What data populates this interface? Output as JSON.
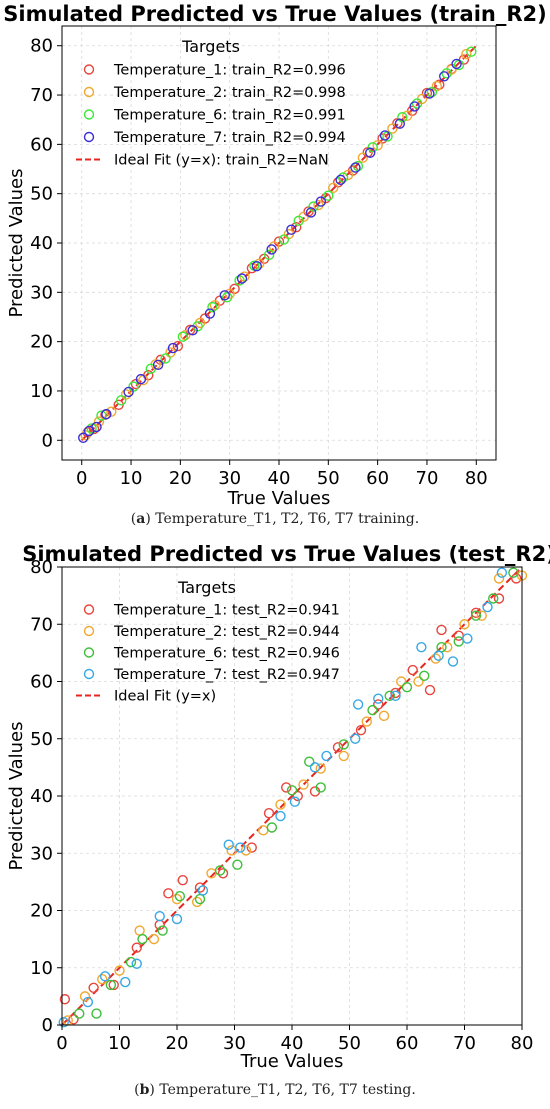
{
  "chart_data": [
    {
      "type": "scatter",
      "title": "Simulated Predicted vs True Values (train_R2)",
      "xlabel": "True Values",
      "ylabel": "Predicted Values",
      "xlim": [
        -4,
        84
      ],
      "ylim": [
        -4,
        84
      ],
      "xticks": [
        0,
        10,
        20,
        30,
        40,
        50,
        60,
        70,
        80
      ],
      "yticks": [
        0,
        10,
        20,
        30,
        40,
        50,
        60,
        70,
        80
      ],
      "grid": true,
      "legend": {
        "title": "Targets",
        "placement": "top-left",
        "ideal_label": "Ideal Fit (y=x): train_R2=NaN"
      },
      "ideal_line": {
        "x": [
          0,
          80
        ],
        "y": [
          0,
          80
        ],
        "color": "#e8251f"
      },
      "series": [
        {
          "name": "Temperature_1: train_R2=0.996",
          "color": "#e8453c",
          "x": [
            1.2,
            2.5,
            4.8,
            7.5,
            11.0,
            13.5,
            16.0,
            19.5,
            22.0,
            25.0,
            28.0,
            31.0,
            34.5,
            37.0,
            40.0,
            43.5,
            46.0,
            49.5,
            52.0,
            55.0,
            58.0,
            61.0,
            64.0,
            67.0,
            70.0,
            72.5,
            75.0,
            77.5
          ],
          "y": [
            1.6,
            2.3,
            5.2,
            7.2,
            11.4,
            13.2,
            16.3,
            19.1,
            22.4,
            24.7,
            28.3,
            30.7,
            34.9,
            36.8,
            40.3,
            43.2,
            46.4,
            49.1,
            52.3,
            54.7,
            58.4,
            61.2,
            64.3,
            66.8,
            70.4,
            72.1,
            75.3,
            77.2
          ]
        },
        {
          "name": "Temperature_2: train_R2=0.998",
          "color": "#f0a830",
          "x": [
            0.8,
            3.5,
            6.0,
            9.0,
            12.5,
            15.0,
            18.0,
            21.0,
            24.0,
            27.0,
            30.0,
            33.0,
            36.0,
            39.0,
            42.0,
            45.0,
            48.0,
            51.0,
            54.0,
            57.0,
            60.0,
            63.0,
            66.0,
            69.0,
            72.0,
            75.0,
            78.0
          ],
          "y": [
            1.0,
            3.8,
            5.8,
            9.3,
            12.2,
            15.4,
            17.8,
            21.3,
            23.8,
            27.4,
            29.7,
            33.2,
            35.8,
            39.3,
            41.8,
            45.3,
            47.7,
            51.2,
            53.8,
            57.3,
            59.8,
            63.2,
            65.8,
            69.2,
            71.8,
            75.2,
            78.3
          ]
        },
        {
          "name": "Temperature_6: train_R2=0.991",
          "color": "#3de83a",
          "x": [
            2.0,
            4.0,
            8.0,
            10.5,
            14.0,
            17.0,
            20.5,
            23.5,
            26.5,
            29.5,
            32.0,
            35.0,
            38.0,
            41.0,
            44.0,
            47.0,
            50.0,
            53.0,
            56.0,
            59.0,
            62.0,
            65.0,
            68.0,
            71.0,
            74.0,
            76.5,
            79.0
          ],
          "y": [
            2.4,
            5.0,
            8.1,
            10.9,
            14.5,
            16.6,
            21.0,
            23.1,
            27.0,
            29.0,
            32.4,
            35.4,
            37.6,
            40.7,
            44.5,
            47.4,
            49.6,
            53.3,
            55.6,
            59.4,
            61.6,
            65.5,
            68.3,
            70.6,
            74.4,
            76.1,
            78.8
          ]
        },
        {
          "name": "Temperature_7: train_R2=0.994",
          "color": "#3a2fd6",
          "x": [
            0.3,
            1.5,
            3.0,
            5.0,
            9.5,
            12.0,
            15.5,
            18.5,
            22.5,
            26.0,
            29.0,
            32.5,
            35.5,
            38.5,
            42.5,
            46.5,
            48.5,
            52.5,
            55.5,
            58.5,
            61.5,
            64.5,
            67.5,
            70.5,
            73.5,
            76.0
          ],
          "y": [
            0.5,
            1.9,
            2.7,
            5.3,
            9.8,
            12.4,
            15.3,
            18.7,
            22.3,
            25.7,
            29.4,
            32.8,
            35.3,
            38.7,
            42.7,
            46.2,
            48.4,
            52.8,
            55.3,
            58.3,
            61.8,
            64.2,
            67.7,
            70.3,
            73.8,
            76.3
          ]
        }
      ],
      "caption_tag": "a",
      "caption_text": " Temperature_T1, T2, T6, T7 training."
    },
    {
      "type": "scatter",
      "title": "Simulated Predicted vs True Values (test_R2)",
      "xlabel": "True Values",
      "ylabel": "Predicted Values",
      "xlim": [
        0,
        80
      ],
      "ylim": [
        0,
        80
      ],
      "xticks": [
        0,
        10,
        20,
        30,
        40,
        50,
        60,
        70,
        80
      ],
      "yticks": [
        0,
        10,
        20,
        30,
        40,
        50,
        60,
        70,
        80
      ],
      "grid": true,
      "legend": {
        "title": "Targets",
        "placement": "top-left",
        "ideal_label": "Ideal Fit (y=x)"
      },
      "ideal_line": {
        "x": [
          0,
          80
        ],
        "y": [
          0,
          80
        ],
        "color": "#e8251f"
      },
      "series": [
        {
          "name": "Temperature_1: test_R2=0.941",
          "color": "#e8453c",
          "x": [
            0.5,
            2.0,
            5.5,
            9.0,
            13.0,
            17.0,
            18.5,
            21.0,
            24.0,
            28.0,
            33.0,
            36.0,
            39.0,
            41.0,
            44.0,
            48.0,
            52.0,
            55.0,
            58.0,
            61.0,
            64.0,
            66.0,
            69.0,
            72.0,
            76.0,
            79.0
          ],
          "y": [
            4.5,
            1.0,
            6.5,
            7.0,
            13.5,
            17.5,
            23.0,
            25.3,
            24.0,
            26.5,
            31.0,
            37.0,
            41.5,
            40.0,
            40.8,
            48.5,
            51.5,
            56.0,
            58.0,
            62.0,
            58.5,
            69.0,
            68.0,
            72.0,
            74.5,
            78.0
          ]
        },
        {
          "name": "Temperature_2: test_R2=0.944",
          "color": "#f0a830",
          "x": [
            1.0,
            4.0,
            7.0,
            10.0,
            13.5,
            16.0,
            20.0,
            23.5,
            26.0,
            29.5,
            32.0,
            35.0,
            38.0,
            42.0,
            45.0,
            49.0,
            53.0,
            56.0,
            59.0,
            62.0,
            65.0,
            67.0,
            70.0,
            73.0,
            76.0,
            80.0
          ],
          "y": [
            0.8,
            5.0,
            8.0,
            9.5,
            16.5,
            15.0,
            22.0,
            21.5,
            26.5,
            30.5,
            30.5,
            34.0,
            38.5,
            42.0,
            44.8,
            47.0,
            53.0,
            54.0,
            60.0,
            60.0,
            64.0,
            66.0,
            70.0,
            71.5,
            78.0,
            78.5
          ]
        },
        {
          "name": "Temperature_6: test_R2=0.946",
          "color": "#3dbf3a",
          "x": [
            3.0,
            6.0,
            8.5,
            12.0,
            14.0,
            17.5,
            20.5,
            24.0,
            27.5,
            30.5,
            36.5,
            40.0,
            43.0,
            45.0,
            49.0,
            54.0,
            57.0,
            60.0,
            63.0,
            66.0,
            69.0,
            72.0,
            75.0,
            78.5
          ],
          "y": [
            2.0,
            2.0,
            7.0,
            11.0,
            15.0,
            16.5,
            22.5,
            22.0,
            27.0,
            28.0,
            34.5,
            41.0,
            46.0,
            41.5,
            49.0,
            55.0,
            57.5,
            59.0,
            61.0,
            66.0,
            67.0,
            71.5,
            74.5,
            79.0
          ]
        },
        {
          "name": "Temperature_7: test_R2=0.947",
          "color": "#36a8e6",
          "x": [
            0.3,
            4.5,
            7.5,
            11.0,
            13.0,
            17.0,
            20.0,
            24.5,
            29.0,
            31.0,
            38.0,
            40.5,
            44.0,
            46.0,
            51.0,
            51.5,
            55.0,
            58.0,
            62.5,
            65.5,
            68.0,
            70.5,
            74.0,
            76.5
          ],
          "y": [
            0.5,
            4.0,
            8.5,
            7.5,
            10.7,
            19.0,
            18.5,
            23.5,
            31.5,
            31.0,
            36.5,
            39.0,
            45.0,
            47.0,
            50.0,
            56.0,
            57.0,
            57.5,
            66.0,
            64.5,
            63.5,
            67.5,
            73.0,
            79.0
          ]
        }
      ],
      "caption_tag": "b",
      "caption_text": " Temperature_T1, T2, T6, T7 testing."
    }
  ]
}
